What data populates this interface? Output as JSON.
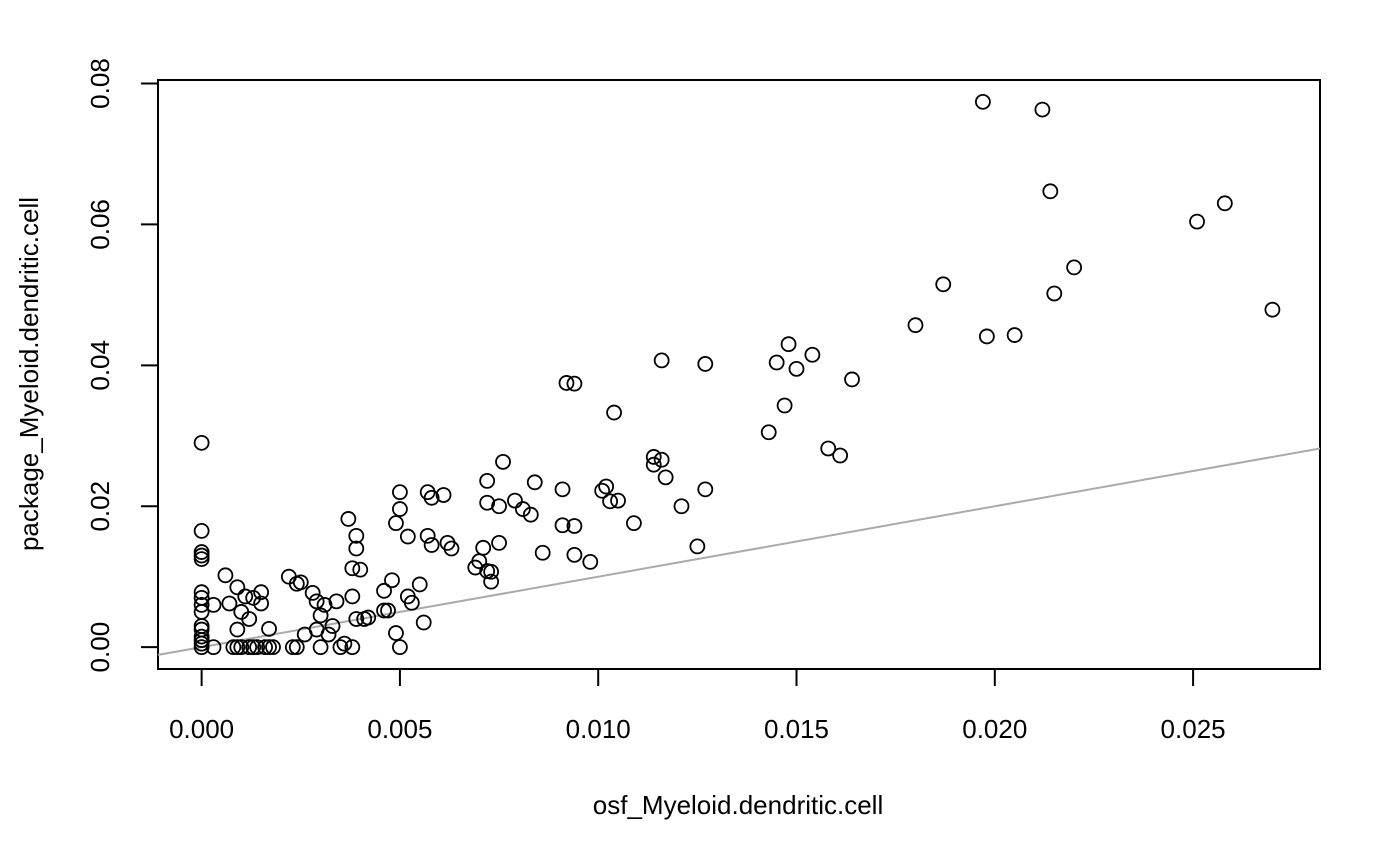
{
  "chart_data": {
    "type": "scatter",
    "xlabel": "osf_Myeloid.dendritic.cell",
    "ylabel": "package_Myeloid.dendritic.cell",
    "xlim": [
      -0.0011,
      0.0282
    ],
    "ylim": [
      -0.0031,
      0.0805
    ],
    "xticks": [
      0.0,
      0.005,
      0.01,
      0.015,
      0.02,
      0.025
    ],
    "xtick_labels": [
      "0.000",
      "0.005",
      "0.010",
      "0.015",
      "0.020",
      "0.025"
    ],
    "yticks": [
      0.0,
      0.02,
      0.04,
      0.06,
      0.08
    ],
    "ytick_labels": [
      "0.00",
      "0.02",
      "0.04",
      "0.06",
      "0.08"
    ],
    "grid": false,
    "reference_line": {
      "slope": 1,
      "intercept": 0,
      "color": "#aaaaaa"
    },
    "point_color": "#000000",
    "x": [
      0.0,
      0.0,
      0.0,
      0.0,
      0.0,
      0.0,
      0.0,
      0.0,
      0.0,
      0.0,
      0.0,
      0.0,
      0.0,
      0.0,
      0.0,
      0.0003,
      0.0003,
      0.0006,
      0.0007,
      0.0009,
      0.0009,
      0.001,
      0.0011,
      0.0012,
      0.0013,
      0.0015,
      0.0015,
      0.0017,
      0.0009,
      0.001,
      0.0012,
      0.0014,
      0.0016,
      0.0018,
      0.0022,
      0.0024,
      0.0025,
      0.0023,
      0.0026,
      0.0028,
      0.0029,
      0.003,
      0.0031,
      0.0032,
      0.0029,
      0.0033,
      0.0034,
      0.003,
      0.0036,
      0.0037,
      0.0038,
      0.0038,
      0.0039,
      0.0039,
      0.004,
      0.0041,
      0.0038,
      0.0039,
      0.0042,
      0.0046,
      0.0047,
      0.0046,
      0.0048,
      0.0049,
      0.0049,
      0.005,
      0.005,
      0.0052,
      0.0052,
      0.0053,
      0.0055,
      0.0056,
      0.0057,
      0.0057,
      0.0058,
      0.0058,
      0.0061,
      0.0062,
      0.0063,
      0.0069,
      0.007,
      0.0071,
      0.0072,
      0.0072,
      0.0073,
      0.0073,
      0.0075,
      0.0072,
      0.0075,
      0.0076,
      0.0079,
      0.0081,
      0.0083,
      0.0084,
      0.0086,
      0.0091,
      0.0091,
      0.0092,
      0.0094,
      0.0094,
      0.0094,
      0.0098,
      0.0101,
      0.0102,
      0.0103,
      0.0104,
      0.0105,
      0.0109,
      0.0114,
      0.0114,
      0.0116,
      0.0116,
      0.0117,
      0.0121,
      0.0125,
      0.0127,
      0.0127,
      0.0143,
      0.0145,
      0.0147,
      0.0148,
      0.015,
      0.0154,
      0.0158,
      0.0161,
      0.0164,
      0.018,
      0.0187,
      0.0197,
      0.0198,
      0.0205,
      0.0212,
      0.0214,
      0.0215,
      0.022,
      0.0251,
      0.0258,
      0.027,
      0.0008,
      0.0013,
      0.0017,
      0.0024,
      0.0035,
      0.005
    ],
    "y": [
      0.029,
      0.0165,
      0.0135,
      0.013,
      0.0125,
      0.0078,
      0.007,
      0.006,
      0.005,
      0.003,
      0.0025,
      0.0015,
      0.001,
      0.0005,
      0.0,
      0.006,
      0.0,
      0.0102,
      0.0062,
      0.0085,
      0.0025,
      0.005,
      0.0072,
      0.004,
      0.007,
      0.0078,
      0.0062,
      0.0026,
      0.0,
      0.0,
      0.0,
      0.0,
      0.0,
      0.0,
      0.01,
      0.009,
      0.0092,
      0.0,
      0.0018,
      0.0077,
      0.0065,
      0.0045,
      0.006,
      0.0018,
      0.0025,
      0.003,
      0.0065,
      0.0,
      0.0005,
      0.0182,
      0.0112,
      0.0072,
      0.0158,
      0.014,
      0.011,
      0.004,
      0.0,
      0.004,
      0.0042,
      0.008,
      0.0052,
      0.0052,
      0.0095,
      0.0176,
      0.002,
      0.022,
      0.0196,
      0.0157,
      0.0072,
      0.0063,
      0.0089,
      0.0035,
      0.022,
      0.0158,
      0.0145,
      0.0212,
      0.0216,
      0.0148,
      0.014,
      0.0113,
      0.0122,
      0.0141,
      0.0236,
      0.0205,
      0.0107,
      0.0093,
      0.0148,
      0.0108,
      0.02,
      0.0263,
      0.0208,
      0.0196,
      0.0188,
      0.0234,
      0.0134,
      0.0224,
      0.0173,
      0.0375,
      0.0374,
      0.0172,
      0.0131,
      0.0121,
      0.0222,
      0.0228,
      0.0207,
      0.0333,
      0.0208,
      0.0176,
      0.027,
      0.0259,
      0.0266,
      0.0407,
      0.0241,
      0.02,
      0.0143,
      0.0402,
      0.0224,
      0.0305,
      0.0404,
      0.0343,
      0.043,
      0.0395,
      0.0415,
      0.0282,
      0.0272,
      0.038,
      0.0457,
      0.0515,
      0.0774,
      0.0441,
      0.0443,
      0.0763,
      0.0647,
      0.0502,
      0.0539,
      0.0604,
      0.063,
      0.0479,
      0.0,
      0.0,
      0.0,
      0.0,
      0.0,
      0.0
    ]
  }
}
